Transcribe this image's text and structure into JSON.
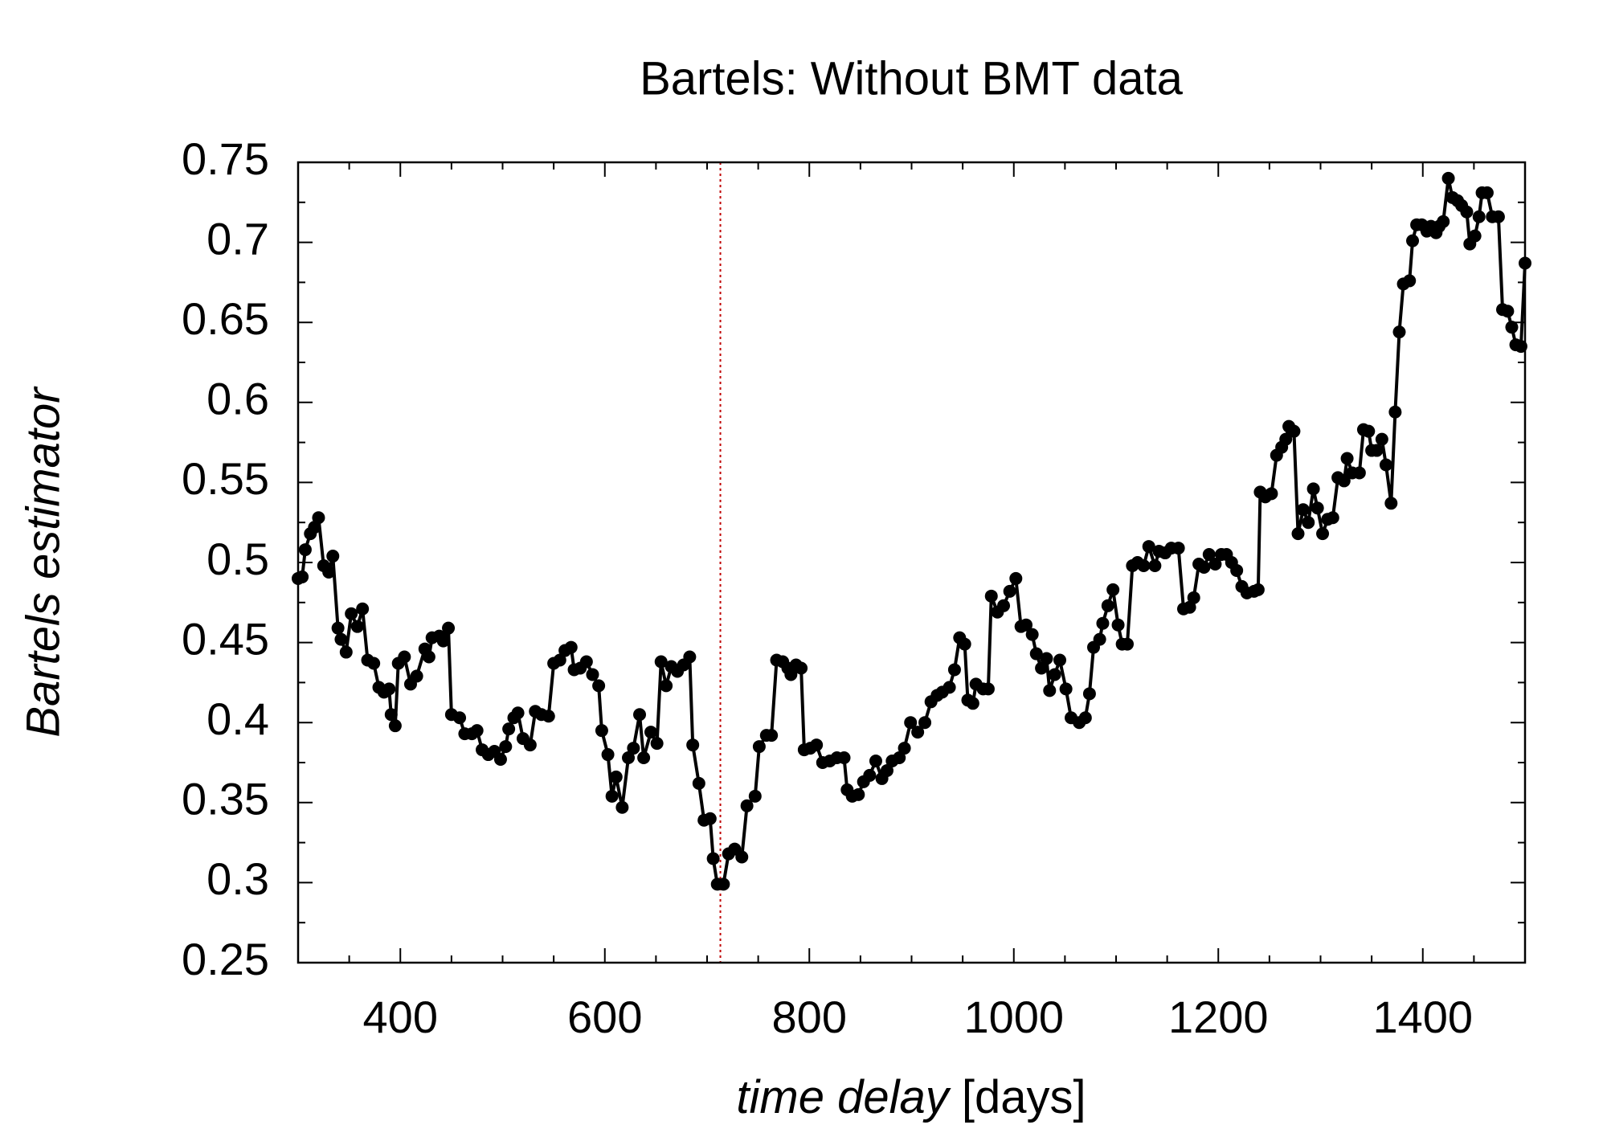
{
  "chart_data": {
    "type": "line",
    "title": "Bartels: Without BMT data",
    "xlabel": {
      "italic": "time delay",
      "normal": "[days]"
    },
    "ylabel": "Bartels estimator",
    "xlim": [
      300,
      1500
    ],
    "ylim": [
      0.25,
      0.75
    ],
    "xticks": [
      400,
      600,
      800,
      1000,
      1200,
      1400
    ],
    "xminor": [
      300,
      350,
      450,
      500,
      550,
      650,
      700,
      750,
      850,
      900,
      950,
      1050,
      1100,
      1150,
      1250,
      1300,
      1350,
      1450,
      1500
    ],
    "yticks": [
      0.25,
      0.3,
      0.35,
      0.4,
      0.45,
      0.5,
      0.55,
      0.6,
      0.65,
      0.7,
      0.75
    ],
    "yminor": [
      0.275,
      0.325,
      0.375,
      0.425,
      0.475,
      0.525,
      0.575,
      0.625,
      0.675,
      0.725
    ],
    "vline": {
      "x": 713,
      "color": "#c00000"
    },
    "x": [
      300,
      304,
      307,
      312,
      316,
      320,
      325,
      330,
      334,
      339,
      342,
      347,
      352,
      358,
      363,
      368,
      374,
      379,
      384,
      389,
      391,
      395,
      398,
      404,
      410,
      416,
      424,
      428,
      431,
      438,
      442,
      447,
      450,
      458,
      463,
      470,
      475,
      480,
      486,
      492,
      498,
      503,
      506,
      511,
      515,
      520,
      527,
      532,
      538,
      545,
      550,
      556,
      561,
      567,
      570,
      576,
      582,
      588,
      594,
      597,
      603,
      607,
      611,
      617,
      623,
      628,
      634,
      638,
      645,
      651,
      655,
      660,
      665,
      671,
      677,
      683,
      686,
      692,
      697,
      703,
      706,
      710,
      716,
      721,
      727,
      734,
      739,
      747,
      751,
      758,
      763,
      768,
      774,
      779,
      782,
      787,
      792,
      795,
      801,
      807,
      813,
      820,
      827,
      834,
      837,
      842,
      848,
      853,
      859,
      865,
      871,
      876,
      881,
      888,
      893,
      899,
      906,
      913,
      919,
      925,
      930,
      937,
      942,
      947,
      952,
      955,
      960,
      963,
      970,
      975,
      978,
      984,
      990,
      996,
      1002,
      1007,
      1012,
      1018,
      1022,
      1027,
      1032,
      1035,
      1040,
      1045,
      1051,
      1056,
      1064,
      1070,
      1074,
      1078,
      1084,
      1087,
      1092,
      1097,
      1102,
      1106,
      1111,
      1116,
      1121,
      1127,
      1132,
      1138,
      1142,
      1148,
      1154,
      1161,
      1166,
      1172,
      1176,
      1181,
      1186,
      1191,
      1197,
      1203,
      1208,
      1213,
      1218,
      1223,
      1228,
      1235,
      1239,
      1241,
      1246,
      1252,
      1257,
      1262,
      1266,
      1269,
      1274,
      1278,
      1283,
      1288,
      1293,
      1297,
      1302,
      1307,
      1312,
      1317,
      1323,
      1326,
      1331,
      1338,
      1342,
      1347,
      1350,
      1355,
      1360,
      1364,
      1369,
      1373,
      1377,
      1381,
      1387,
      1390,
      1394,
      1399,
      1404,
      1408,
      1413,
      1416,
      1420,
      1425,
      1429,
      1434,
      1438,
      1443,
      1446,
      1451,
      1455,
      1458,
      1463,
      1468,
      1474,
      1478,
      1483,
      1487,
      1491,
      1496,
      1500
    ],
    "series": [
      {
        "color": "#000000",
        "values": [
          0.49,
          0.491,
          0.508,
          0.518,
          0.522,
          0.528,
          0.498,
          0.494,
          0.504,
          0.459,
          0.452,
          0.444,
          0.468,
          0.46,
          0.471,
          0.439,
          0.437,
          0.422,
          0.419,
          0.421,
          0.405,
          0.398,
          0.437,
          0.441,
          0.424,
          0.429,
          0.446,
          0.441,
          0.453,
          0.454,
          0.451,
          0.459,
          0.405,
          0.403,
          0.393,
          0.393,
          0.395,
          0.383,
          0.38,
          0.382,
          0.377,
          0.385,
          0.396,
          0.403,
          0.406,
          0.39,
          0.386,
          0.407,
          0.405,
          0.404,
          0.437,
          0.439,
          0.445,
          0.447,
          0.433,
          0.434,
          0.438,
          0.43,
          0.423,
          0.395,
          0.38,
          0.354,
          0.366,
          0.347,
          0.378,
          0.384,
          0.405,
          0.378,
          0.394,
          0.387,
          0.438,
          0.423,
          0.435,
          0.432,
          0.436,
          0.441,
          0.386,
          0.362,
          0.339,
          0.34,
          0.315,
          0.299,
          0.299,
          0.318,
          0.321,
          0.316,
          0.348,
          0.354,
          0.385,
          0.392,
          0.392,
          0.439,
          0.438,
          0.434,
          0.43,
          0.436,
          0.434,
          0.383,
          0.384,
          0.386,
          0.375,
          0.376,
          0.378,
          0.378,
          0.358,
          0.354,
          0.355,
          0.363,
          0.367,
          0.376,
          0.365,
          0.37,
          0.376,
          0.378,
          0.384,
          0.4,
          0.394,
          0.4,
          0.413,
          0.417,
          0.419,
          0.422,
          0.433,
          0.453,
          0.449,
          0.414,
          0.412,
          0.424,
          0.421,
          0.421,
          0.479,
          0.469,
          0.473,
          0.482,
          0.49,
          0.46,
          0.461,
          0.455,
          0.443,
          0.434,
          0.44,
          0.42,
          0.43,
          0.439,
          0.421,
          0.403,
          0.4,
          0.403,
          0.418,
          0.447,
          0.452,
          0.462,
          0.473,
          0.483,
          0.461,
          0.449,
          0.449,
          0.498,
          0.5,
          0.498,
          0.51,
          0.498,
          0.507,
          0.506,
          0.509,
          0.509,
          0.471,
          0.472,
          0.478,
          0.499,
          0.497,
          0.505,
          0.499,
          0.505,
          0.505,
          0.5,
          0.495,
          0.485,
          0.481,
          0.482,
          0.483,
          0.544,
          0.541,
          0.543,
          0.567,
          0.572,
          0.577,
          0.585,
          0.582,
          0.518,
          0.533,
          0.525,
          0.546,
          0.534,
          0.518,
          0.527,
          0.528,
          0.553,
          0.551,
          0.565,
          0.556,
          0.556,
          0.583,
          0.582,
          0.57,
          0.57,
          0.577,
          0.561,
          0.537,
          0.594,
          0.644,
          0.674,
          0.676,
          0.701,
          0.711,
          0.711,
          0.707,
          0.71,
          0.706,
          0.71,
          0.713,
          0.74,
          0.728,
          0.726,
          0.723,
          0.719,
          0.699,
          0.704,
          0.716,
          0.731,
          0.731,
          0.716,
          0.716,
          0.658,
          0.657,
          0.647,
          0.636,
          0.635,
          0.687
        ]
      }
    ]
  }
}
